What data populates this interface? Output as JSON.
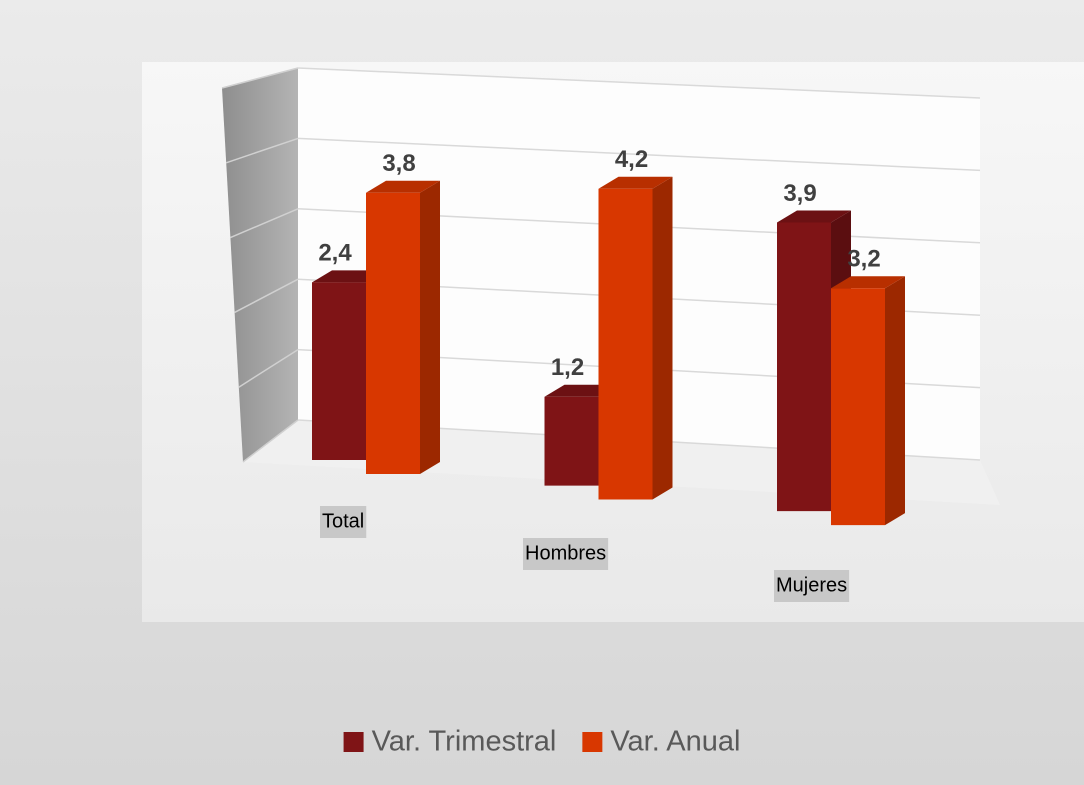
{
  "chart_data": {
    "type": "bar",
    "categories": [
      "Total",
      "Hombres",
      "Mujeres"
    ],
    "series": [
      {
        "name": "Var. Trimestral",
        "color": "#7f1416",
        "values": [
          2.4,
          1.2,
          3.9
        ],
        "value_labels": [
          "2,4",
          "1,2",
          "3,9"
        ]
      },
      {
        "name": "Var. Anual",
        "color": "#d83700",
        "values": [
          3.8,
          4.2,
          3.2
        ],
        "value_labels": [
          "3,8",
          "4,2",
          "3,2"
        ]
      }
    ],
    "ylim": [
      0,
      5
    ],
    "yticks": [
      0,
      1,
      2,
      3,
      4,
      5
    ],
    "grid": true,
    "legend": "bottom"
  }
}
